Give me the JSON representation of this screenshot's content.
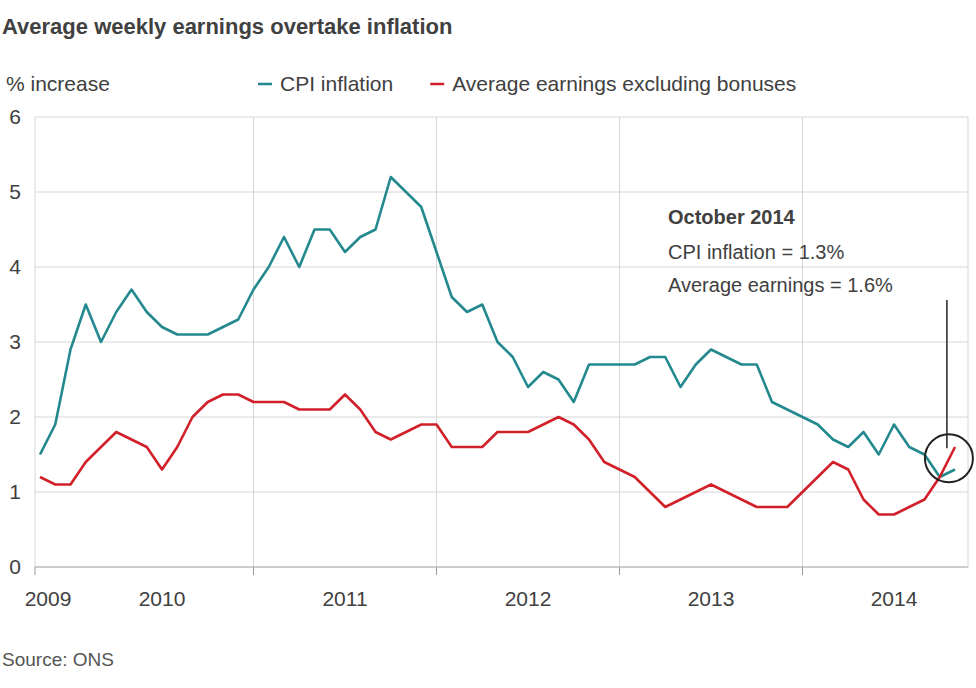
{
  "chart_data": {
    "type": "line",
    "title": "Average weekly earnings overtake inflation",
    "y_label": "% increase",
    "source": "Source: ONS",
    "categories": [
      "2009",
      null,
      null,
      null,
      null,
      null,
      null,
      null,
      "2010",
      null,
      null,
      null,
      null,
      null,
      null,
      null,
      null,
      null,
      null,
      null,
      "2011",
      null,
      null,
      null,
      null,
      null,
      null,
      null,
      null,
      null,
      null,
      null,
      "2012",
      null,
      null,
      null,
      null,
      null,
      null,
      null,
      null,
      null,
      null,
      null,
      "2013",
      null,
      null,
      null,
      null,
      null,
      null,
      null,
      null,
      null,
      null,
      null,
      "2014",
      null,
      null,
      null,
      null
    ],
    "series": [
      {
        "name": "CPI inflation",
        "color": "#23898e",
        "values": [
          1.5,
          1.9,
          2.9,
          3.5,
          3.0,
          3.4,
          3.7,
          3.4,
          3.2,
          3.1,
          3.1,
          3.1,
          3.2,
          3.3,
          3.7,
          4.0,
          4.4,
          4.0,
          4.5,
          4.5,
          4.2,
          4.4,
          4.5,
          5.2,
          5.0,
          4.8,
          4.2,
          3.6,
          3.4,
          3.5,
          3.0,
          2.8,
          2.4,
          2.6,
          2.5,
          2.2,
          2.7,
          2.7,
          2.7,
          2.7,
          2.8,
          2.8,
          2.4,
          2.7,
          2.9,
          2.8,
          2.7,
          2.7,
          2.2,
          2.1,
          2.0,
          1.9,
          1.7,
          1.6,
          1.8,
          1.5,
          1.9,
          1.6,
          1.5,
          1.2,
          1.3
        ]
      },
      {
        "name": "Average earnings excluding bonuses",
        "color": "#d1202a",
        "values": [
          1.2,
          1.1,
          1.1,
          1.4,
          1.6,
          1.8,
          1.7,
          1.6,
          1.3,
          1.6,
          2.0,
          2.2,
          2.3,
          2.3,
          2.2,
          2.2,
          2.2,
          2.1,
          2.1,
          2.1,
          2.3,
          2.1,
          1.8,
          1.7,
          1.8,
          1.9,
          1.9,
          1.6,
          1.6,
          1.6,
          1.8,
          1.8,
          1.8,
          1.9,
          2.0,
          1.9,
          1.7,
          1.4,
          1.3,
          1.2,
          1.0,
          0.8,
          0.9,
          1.0,
          1.1,
          1.0,
          0.9,
          0.8,
          0.8,
          0.8,
          1.0,
          1.2,
          1.4,
          1.3,
          0.9,
          0.7,
          0.7,
          0.8,
          0.9,
          1.2,
          1.6
        ]
      }
    ],
    "ylim": [
      0,
      6
    ],
    "yticks": [
      0,
      1,
      2,
      3,
      4,
      5,
      6
    ],
    "grid": true,
    "legend": "top",
    "annotation": {
      "title": "October 2014",
      "text": [
        "CPI inflation = 1.3%",
        "Average earnings = 1.6%"
      ]
    }
  }
}
